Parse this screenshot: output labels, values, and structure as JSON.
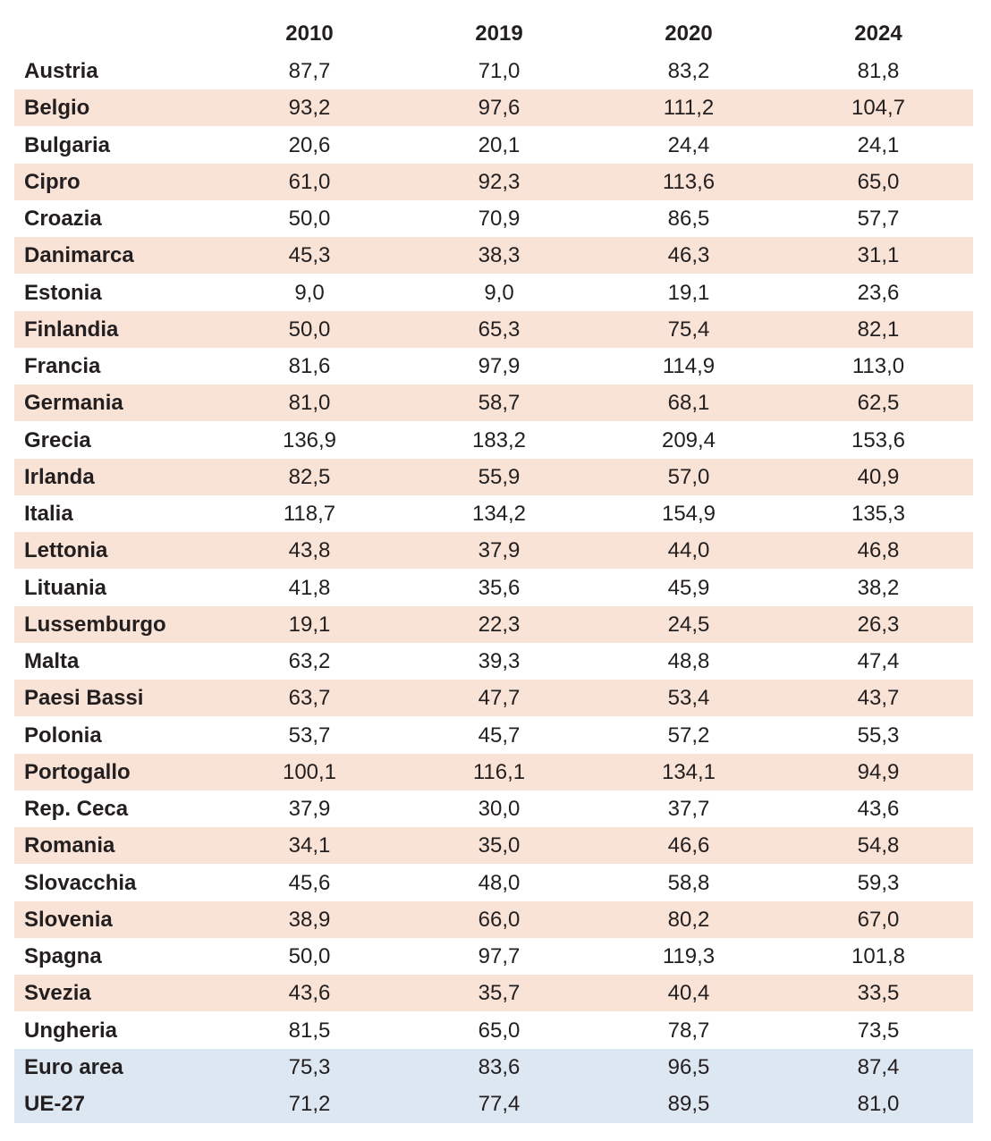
{
  "table": {
    "header": [
      "2010",
      "2019",
      "2020",
      "2024"
    ],
    "rows": [
      [
        "Austria",
        "87,7",
        "71,0",
        "83,2",
        "81,8"
      ],
      [
        "Belgio",
        "93,2",
        "97,6",
        "111,2",
        "104,7"
      ],
      [
        "Bulgaria",
        "20,6",
        "20,1",
        "24,4",
        "24,1"
      ],
      [
        "Cipro",
        "61,0",
        "92,3",
        "113,6",
        "65,0"
      ],
      [
        "Croazia",
        "50,0",
        "70,9",
        "86,5",
        "57,7"
      ],
      [
        "Danimarca",
        "45,3",
        "38,3",
        "46,3",
        "31,1"
      ],
      [
        "Estonia",
        "9,0",
        "9,0",
        "19,1",
        "23,6"
      ],
      [
        "Finlandia",
        "50,0",
        "65,3",
        "75,4",
        "82,1"
      ],
      [
        "Francia",
        "81,6",
        "97,9",
        "114,9",
        "113,0"
      ],
      [
        "Germania",
        "81,0",
        "58,7",
        "68,1",
        "62,5"
      ],
      [
        "Grecia",
        "136,9",
        "183,2",
        "209,4",
        "153,6"
      ],
      [
        "Irlanda",
        "82,5",
        "55,9",
        "57,0",
        "40,9"
      ],
      [
        "Italia",
        "118,7",
        "134,2",
        "154,9",
        "135,3"
      ],
      [
        "Lettonia",
        "43,8",
        "37,9",
        "44,0",
        "46,8"
      ],
      [
        "Lituania",
        "41,8",
        "35,6",
        "45,9",
        "38,2"
      ],
      [
        "Lussemburgo",
        "19,1",
        "22,3",
        "24,5",
        "26,3"
      ],
      [
        "Malta",
        "63,2",
        "39,3",
        "48,8",
        "47,4"
      ],
      [
        "Paesi Bassi",
        "63,7",
        "47,7",
        "53,4",
        "43,7"
      ],
      [
        "Polonia",
        "53,7",
        "45,7",
        "57,2",
        "55,3"
      ],
      [
        "Portogallo",
        "100,1",
        "116,1",
        "134,1",
        "94,9"
      ],
      [
        "Rep. Ceca",
        "37,9",
        "30,0",
        "37,7",
        "43,6"
      ],
      [
        "Romania",
        "34,1",
        "35,0",
        "46,6",
        "54,8"
      ],
      [
        "Slovacchia",
        "45,6",
        "48,0",
        "58,8",
        "59,3"
      ],
      [
        "Slovenia",
        "38,9",
        "66,0",
        "80,2",
        "67,0"
      ],
      [
        "Spagna",
        "50,0",
        "97,7",
        "119,3",
        "101,8"
      ],
      [
        "Svezia",
        "43,6",
        "35,7",
        "40,4",
        "33,5"
      ],
      [
        "Ungheria",
        "81,5",
        "65,0",
        "78,7",
        "73,5"
      ]
    ],
    "aggregate_rows": [
      [
        "Euro area",
        "75,3",
        "83,6",
        "96,5",
        "87,4"
      ],
      [
        "UE-27",
        "71,2",
        "77,4",
        "89,5",
        "81,0"
      ]
    ]
  }
}
